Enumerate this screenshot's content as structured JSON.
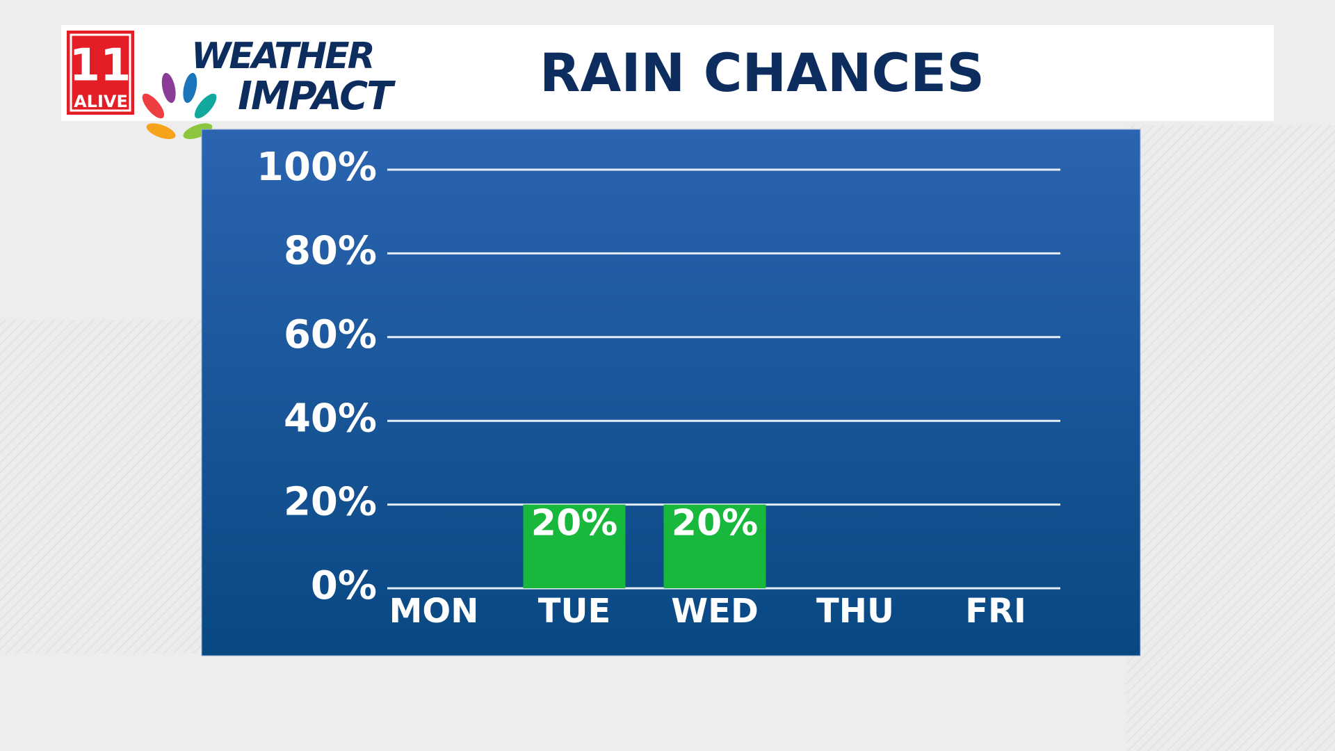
{
  "logo": {
    "station": "11",
    "tagline": "ALIVE",
    "brand_top": "WEATHER",
    "brand_bottom": "IMPACT"
  },
  "chart_data": {
    "type": "bar",
    "title": "RAIN CHANCES",
    "categories": [
      "MON",
      "TUE",
      "WED",
      "THU",
      "FRI"
    ],
    "values": [
      0,
      20,
      20,
      0,
      0
    ],
    "value_labels": [
      null,
      "20%",
      "20%",
      null,
      null
    ],
    "color": "#17b83c",
    "ylim": [
      0,
      100
    ],
    "yticks": [
      {
        "value": 0,
        "label": "0%"
      },
      {
        "value": 20,
        "label": "20%"
      },
      {
        "value": 40,
        "label": "40%"
      },
      {
        "value": 60,
        "label": "60%"
      },
      {
        "value": 80,
        "label": "80%"
      },
      {
        "value": 100,
        "label": "100%"
      }
    ],
    "grid": true
  }
}
